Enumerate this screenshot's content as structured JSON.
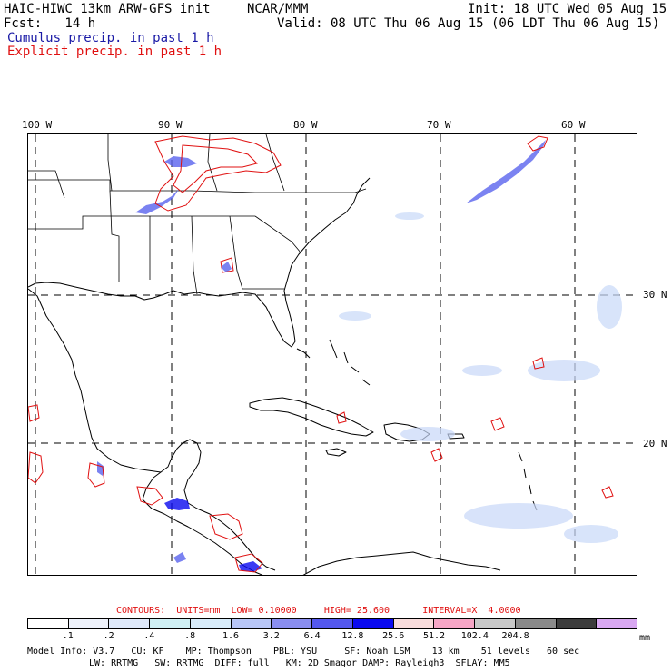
{
  "header": {
    "model": "HAIC-HIWC 13km ARW-GFS init",
    "org": "NCAR/MMM",
    "init": "Init: 18 UTC Wed 05 Aug 15",
    "fcst": "Fcst:   14 h",
    "valid": "Valid: 08 UTC Thu 06 Aug 15 (06 LDT Thu 06 Aug 15)",
    "cumulus": "Cumulus precip. in past 1 h",
    "explicit": "Explicit precip. in past 1 h"
  },
  "map": {
    "lon_labels": [
      "100 W",
      "90 W",
      "80 W",
      "70 W",
      "60 W"
    ],
    "lat_labels": [
      "30 N",
      "20 N"
    ]
  },
  "contours": {
    "label": "CONTOURS:",
    "units": "UNITS=mm",
    "low": "LOW= 0.10000",
    "high": "HIGH= 25.600",
    "interval": "INTERVAL=X  4.0000"
  },
  "legend": {
    "colors": [
      "#ffffff",
      "#eef2fb",
      "#dfe9fa",
      "#d0f0f4",
      "#d8ecfa",
      "#b8c6f6",
      "#8a8ef0",
      "#5458ee",
      "#0a0af0",
      "#f8dcdc",
      "#f6a6c6",
      "#c8c8c8",
      "#8a8a8a",
      "#3c3c3c",
      "#d9a8f2"
    ],
    "ticks": [
      ".1",
      ".2",
      ".4",
      ".8",
      "1.6",
      "3.2",
      "6.4",
      "12.8",
      "25.6",
      "51.2",
      "102.4",
      "204.8"
    ],
    "units": "mm"
  },
  "model_info": {
    "line1": [
      "Model Info: V3.7",
      "CU: KF",
      "MP: Thompson",
      "PBL: YSU",
      "SF: Noah LSM",
      "13 km",
      "51 levels",
      "60 sec"
    ],
    "line2": [
      "LW: RRTMG",
      "SW: RRTMG",
      "DIFF: full",
      "KM: 2D Smagor",
      "DAMP: Rayleigh3",
      "SFLAY: MM5"
    ]
  }
}
